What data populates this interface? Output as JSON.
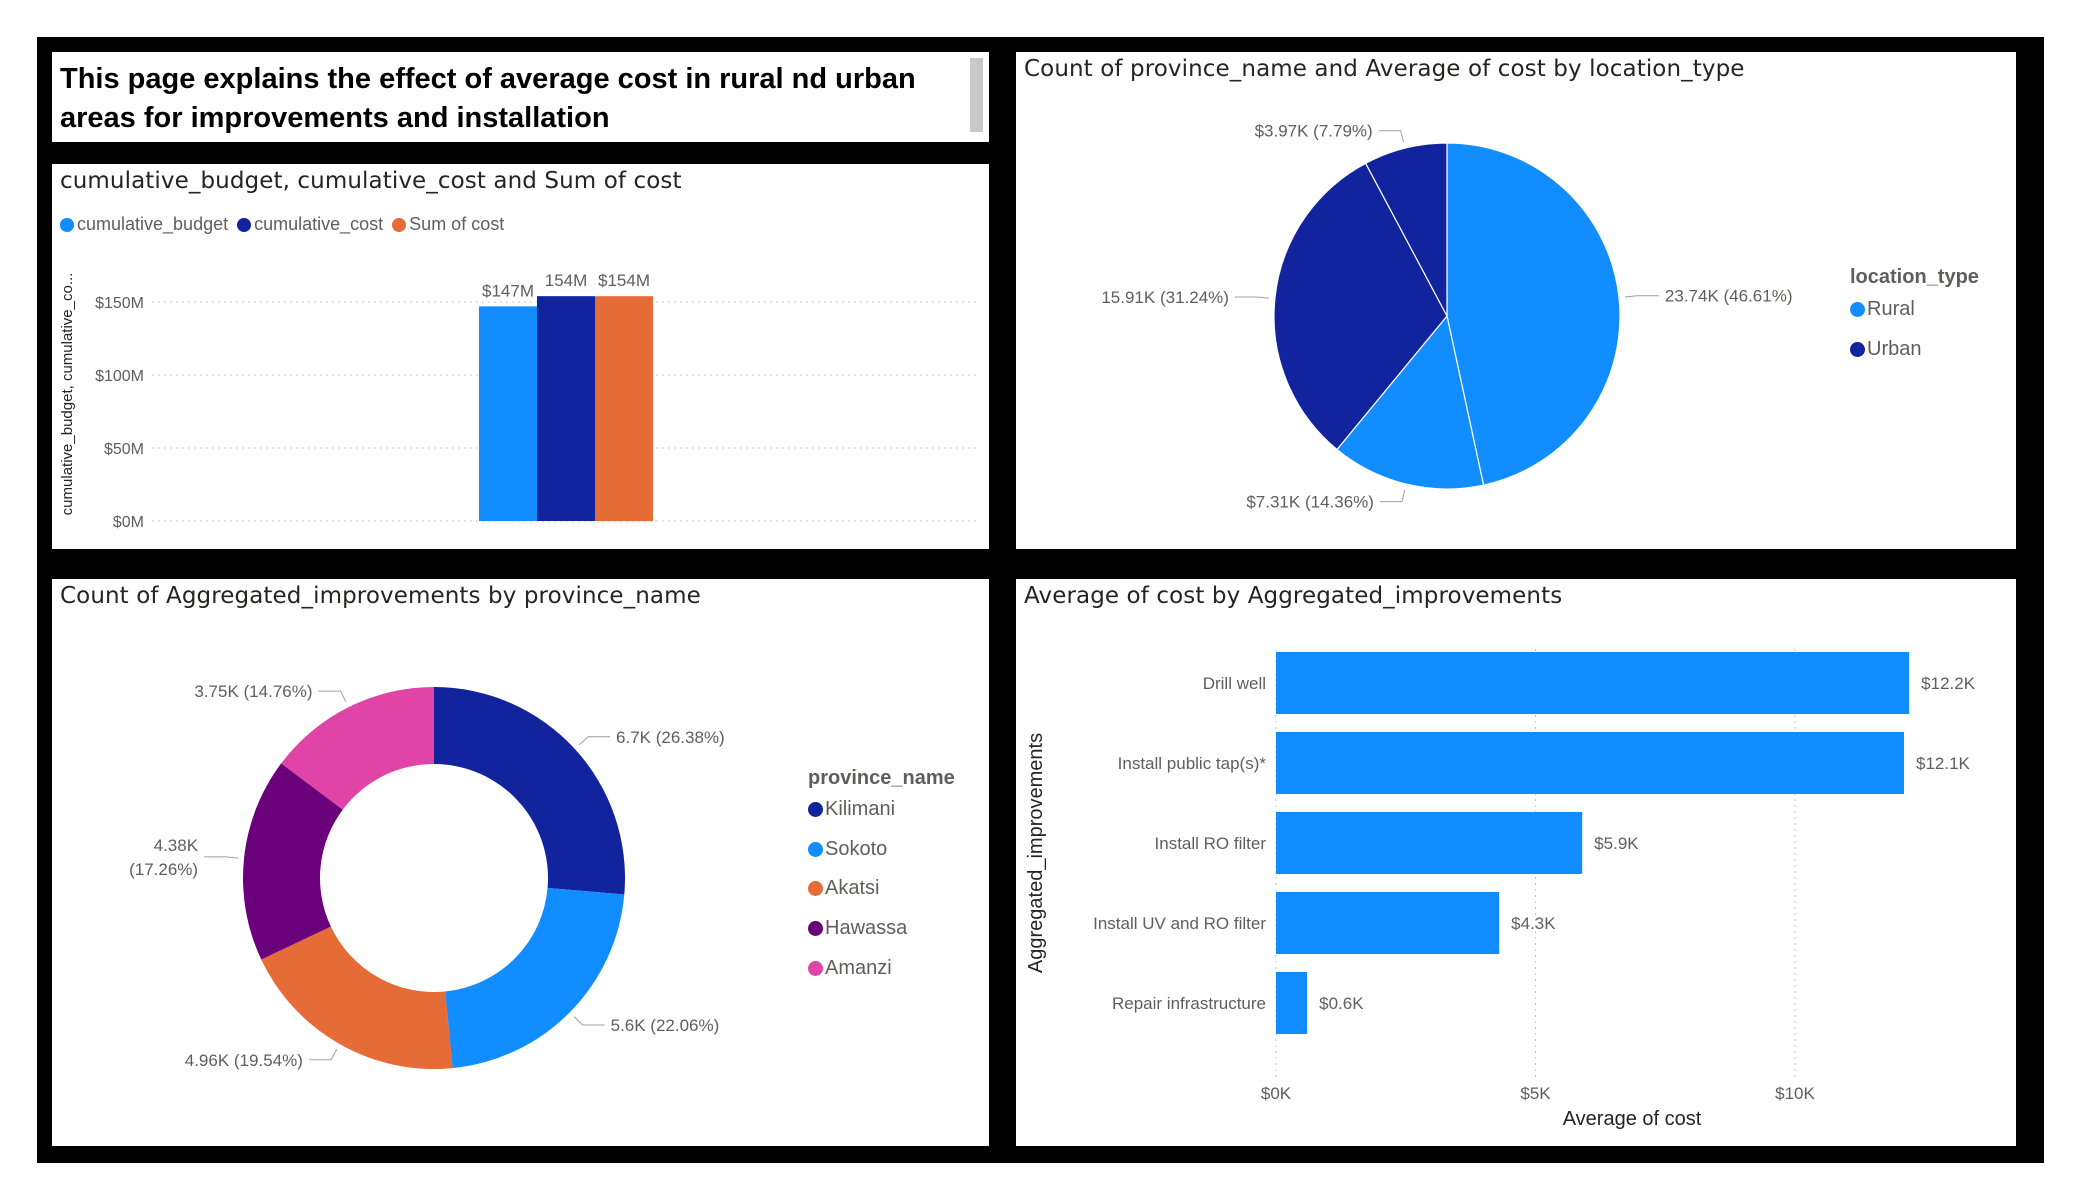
{
  "header": {
    "title": "This page explains the effect of average cost in rural nd urban areas for improvements and installation"
  },
  "colors": {
    "light_blue": "#118DFF",
    "dark_blue": "#12239E",
    "orange": "#E66C37",
    "purple": "#6B007B",
    "pink": "#E044A7"
  },
  "charts": {
    "budget": {
      "title": "cumulative_budget, cumulative_cost and Sum of cost",
      "ylabel": "cumulative_budget, cumulative_co...",
      "legend": [
        "cumulative_budget",
        "cumulative_cost",
        "Sum of cost"
      ],
      "ticks": [
        "$0M",
        "$50M",
        "$100M",
        "$150M"
      ],
      "data_labels": [
        "$147M",
        "154M",
        "$154M"
      ]
    },
    "location": {
      "title": "Count of province_name and Average of cost by location_type",
      "legend_title": "location_type",
      "legend": [
        "Rural",
        "Urban"
      ],
      "labels": [
        "23.74K (46.61%)",
        "$7.31K (14.36%)",
        "15.91K (31.24%)",
        "$3.97K (7.79%)"
      ]
    },
    "province": {
      "title": "Count of Aggregated_improvements by province_name",
      "legend_title": "province_name",
      "legend": [
        "Kilimani",
        "Sokoto",
        "Akatsi",
        "Hawassa",
        "Amanzi"
      ],
      "labels": [
        [
          "6.7K (26.38%)"
        ],
        [
          "5.6K (22.06%)"
        ],
        [
          "4.96K (19.54%)"
        ],
        [
          "4.38K",
          "(17.26%)"
        ],
        [
          "3.75K (14.76%)"
        ]
      ]
    },
    "improvements": {
      "title": "Average of cost by Aggregated_improvements",
      "ylabel": "Aggregated_improvements",
      "xlabel": "Average of cost",
      "ticks": [
        "$0K",
        "$5K",
        "$10K"
      ],
      "categories": [
        "Drill well",
        "Install public tap(s)*",
        "Install RO filter",
        "Install UV and RO filter",
        "Repair infrastructure"
      ],
      "data_labels": [
        "$12.2K",
        "$12.1K",
        "$5.9K",
        "$4.3K",
        "$0.6K"
      ]
    }
  },
  "chart_data": [
    {
      "type": "bar",
      "title": "cumulative_budget, cumulative_cost and Sum of cost",
      "ylabel": "cumulative_budget, cumulative_co...",
      "series": [
        {
          "name": "cumulative_budget",
          "values": [
            147
          ]
        },
        {
          "name": "cumulative_cost",
          "values": [
            154
          ]
        },
        {
          "name": "Sum of cost",
          "values": [
            154
          ]
        }
      ],
      "ylim": [
        0,
        160
      ],
      "yticks": [
        0,
        50,
        100,
        150
      ],
      "grid": true,
      "legend_position": "top-left"
    },
    {
      "type": "pie",
      "title": "Count of province_name and Average of cost by location_type",
      "legend_title": "location_type",
      "slices": [
        {
          "label": "23.74K (46.61%)",
          "value": 46.61,
          "color": "#118DFF"
        },
        {
          "label": "$7.31K (14.36%)",
          "value": 14.36,
          "color": "#118DFF"
        },
        {
          "label": "15.91K (31.24%)",
          "value": 31.24,
          "color": "#12239E"
        },
        {
          "label": "$3.97K (7.79%)",
          "value": 7.79,
          "color": "#12239E"
        }
      ],
      "legend_position": "right"
    },
    {
      "type": "pie",
      "title": "Count of Aggregated_improvements by province_name",
      "legend_title": "province_name",
      "slices": [
        {
          "label": "Kilimani",
          "value": 26.38,
          "color": "#12239E"
        },
        {
          "label": "Sokoto",
          "value": 22.06,
          "color": "#118DFF"
        },
        {
          "label": "Akatsi",
          "value": 19.54,
          "color": "#E66C37"
        },
        {
          "label": "Hawassa",
          "value": 17.26,
          "color": "#6B007B"
        },
        {
          "label": "Amanzi",
          "value": 14.76,
          "color": "#E044A7"
        }
      ],
      "legend_position": "right"
    },
    {
      "type": "bar",
      "orientation": "horizontal",
      "title": "Average of cost by Aggregated_improvements",
      "xlabel": "Average of cost",
      "ylabel": "Aggregated_improvements",
      "categories": [
        "Drill well",
        "Install public tap(s)*",
        "Install RO filter",
        "Install UV and RO filter",
        "Repair infrastructure"
      ],
      "values": [
        12.2,
        12.1,
        5.9,
        4.3,
        0.6
      ],
      "xlim": [
        0,
        13
      ],
      "xticks": [
        0,
        5,
        10
      ],
      "grid": true
    }
  ]
}
